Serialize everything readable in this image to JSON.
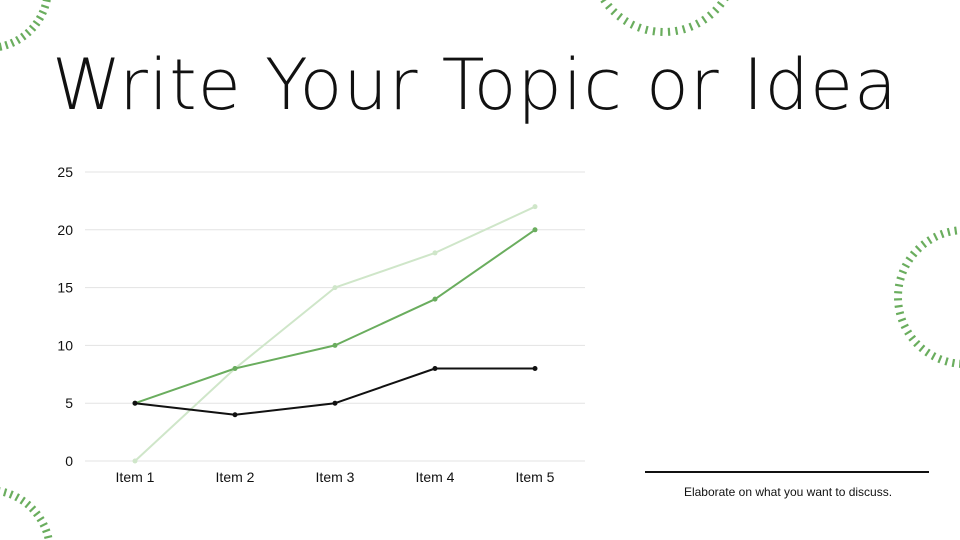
{
  "slide": {
    "title": "Write Your Topic or Idea",
    "caption": "Elaborate on what you want to discuss."
  },
  "colors": {
    "accent_green": "#6aad5e",
    "light_green": "#cfe6c9",
    "dark": "#111111",
    "gridline": "#e3e3e3"
  },
  "decorations": [
    {
      "name": "top-left-ring-icon"
    },
    {
      "name": "top-center-ring-icon"
    },
    {
      "name": "right-ring-icon"
    },
    {
      "name": "bottom-left-ring-icon"
    }
  ],
  "chart_data": {
    "type": "line",
    "categories": [
      "Item 1",
      "Item 2",
      "Item 3",
      "Item 4",
      "Item 5"
    ],
    "series": [
      {
        "values": [
          0,
          8,
          15,
          18,
          22
        ],
        "color": "#cfe6c9"
      },
      {
        "values": [
          5,
          8,
          10,
          14,
          20
        ],
        "color": "#6aad5e"
      },
      {
        "values": [
          5,
          4,
          5,
          8,
          8
        ],
        "color": "#111111"
      }
    ],
    "yticks": [
      0,
      5,
      10,
      15,
      20,
      25
    ],
    "ylim": [
      0,
      25
    ],
    "grid": true,
    "legend": "none",
    "title": "",
    "xlabel": "",
    "ylabel": ""
  }
}
